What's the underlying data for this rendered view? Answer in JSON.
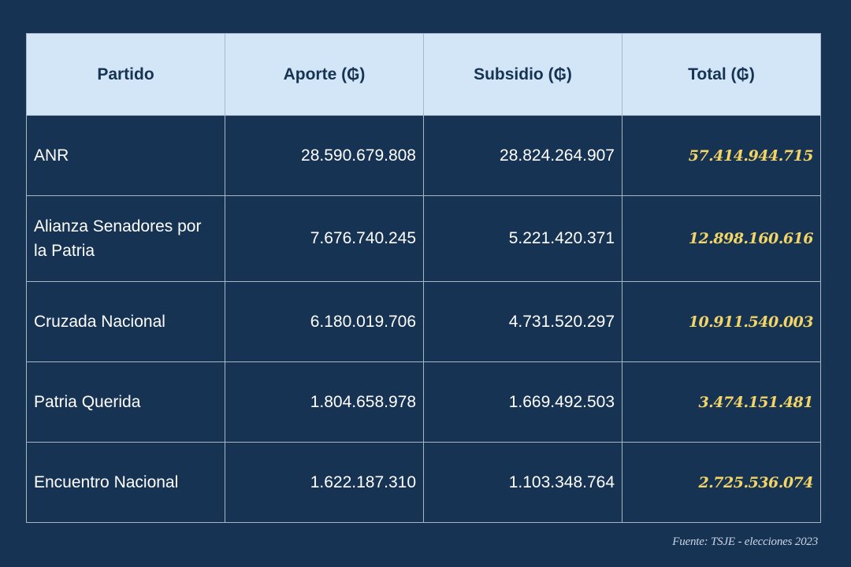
{
  "chart_data": {
    "type": "table",
    "columns": [
      "Partido",
      "Aporte (₲)",
      "Subsidio (₲)",
      "Total (₲)"
    ],
    "rows": [
      {
        "partido": "ANR",
        "aporte": "28.590.679.808",
        "subsidio": "28.824.264.907",
        "total": "57.414.944.715"
      },
      {
        "partido": "Alianza Senadores por la Patria",
        "aporte": "7.676.740.245",
        "subsidio": "5.221.420.371",
        "total": "12.898.160.616"
      },
      {
        "partido": "Cruzada Nacional",
        "aporte": "6.180.019.706",
        "subsidio": "4.731.520.297",
        "total": "10.911.540.003"
      },
      {
        "partido": "Patria Querida",
        "aporte": "1.804.658.978",
        "subsidio": "1.669.492.503",
        "total": "3.474.151.481"
      },
      {
        "partido": "Encuentro Nacional",
        "aporte": "1.622.187.310",
        "subsidio": "1.103.348.764",
        "total": "2.725.536.074"
      }
    ],
    "source": "Fuente: TSJE - elecciones 2023"
  },
  "colors": {
    "background": "#173353",
    "header_background": "#d3e6f8",
    "header_text": "#173353",
    "total_text": "#f3d565",
    "grid": "#a9b6c6"
  }
}
